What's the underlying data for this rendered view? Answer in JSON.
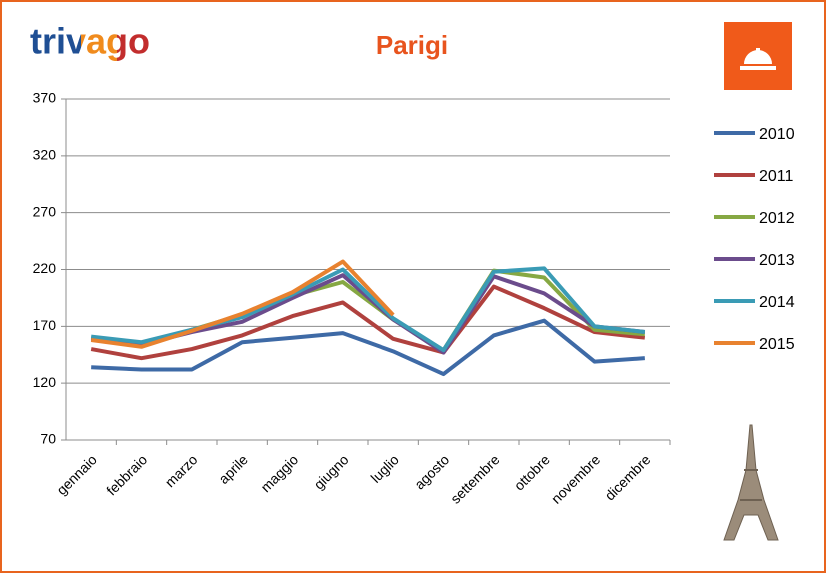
{
  "logo": "trivago",
  "chart_data": {
    "type": "line",
    "title": "Parigi",
    "categories": [
      "gennaio",
      "febbraio",
      "marzo",
      "aprile",
      "maggio",
      "giugno",
      "luglio",
      "agosto",
      "settembre",
      "ottobre",
      "novembre",
      "dicembre"
    ],
    "series": [
      {
        "name": "2010",
        "color": "#3e6aa6",
        "values": [
          134,
          132,
          132,
          156,
          160,
          164,
          148,
          128,
          162,
          175,
          139,
          142
        ]
      },
      {
        "name": "2011",
        "color": "#b0413e",
        "values": [
          150,
          142,
          150,
          162,
          179,
          191,
          159,
          147,
          205,
          186,
          165,
          160
        ]
      },
      {
        "name": "2012",
        "color": "#86a843",
        "values": [
          160,
          154,
          167,
          180,
          197,
          209,
          176,
          149,
          219,
          213,
          167,
          163
        ]
      },
      {
        "name": "2013",
        "color": "#6b4c8c",
        "values": [
          159,
          154,
          165,
          174,
          195,
          215,
          176,
          147,
          214,
          199,
          170,
          165
        ]
      },
      {
        "name": "2014",
        "color": "#3a9bb5",
        "values": [
          161,
          156,
          167,
          178,
          198,
          220,
          177,
          149,
          218,
          221,
          170,
          165
        ]
      },
      {
        "name": "2015",
        "color": "#e8822f",
        "values": [
          158,
          152,
          166,
          181,
          200,
          227,
          180,
          null,
          null,
          null,
          null,
          null
        ]
      }
    ],
    "ylim": [
      70,
      370
    ],
    "yticks": [
      70,
      120,
      170,
      220,
      270,
      320,
      370
    ],
    "grid": true,
    "legend": "right"
  }
}
